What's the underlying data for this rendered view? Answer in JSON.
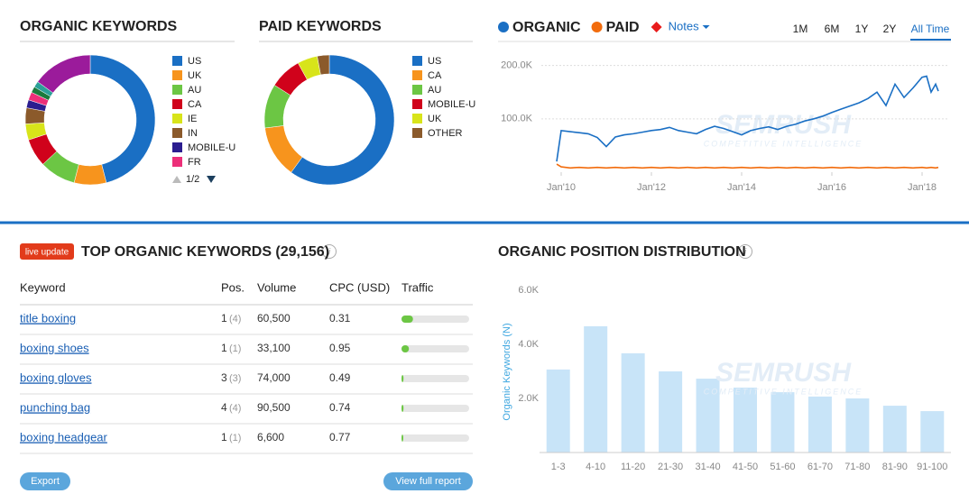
{
  "chart_data": [
    {
      "type": "pie",
      "title": "ORGANIC KEYWORDS",
      "categories": [
        "US",
        "UK",
        "AU",
        "CA",
        "IE",
        "IN",
        "MOBILE-U",
        "FR",
        null,
        null,
        null
      ],
      "values": [
        46,
        8,
        9,
        7,
        4,
        4,
        2,
        2,
        1.5,
        1.5,
        15
      ],
      "colors": [
        "#1a6fc4",
        "#f7941d",
        "#6cc644",
        "#d0021b",
        "#d8e41a",
        "#8b5a2b",
        "#2b1d8f",
        "#ec2f79",
        "#1b7a3c",
        "#2aa198",
        "#9b1b9b"
      ],
      "pagination": "1/2"
    },
    {
      "type": "pie",
      "title": "PAID KEYWORDS",
      "categories": [
        "US",
        "CA",
        "AU",
        "MOBILE-U",
        "UK",
        "OTHER"
      ],
      "values": [
        60,
        13,
        11,
        8,
        5,
        3
      ],
      "colors": [
        "#1a6fc4",
        "#f7941d",
        "#6cc644",
        "#d0021b",
        "#d8e41a",
        "#8b5a2b"
      ]
    },
    {
      "type": "line",
      "x": [
        2009.9,
        2010.0,
        2010.2,
        2010.4,
        2010.6,
        2010.8,
        2011.0,
        2011.2,
        2011.4,
        2011.6,
        2011.8,
        2012.0,
        2012.2,
        2012.4,
        2012.6,
        2012.8,
        2013.0,
        2013.2,
        2013.4,
        2013.6,
        2013.8,
        2014.0,
        2014.2,
        2014.4,
        2014.6,
        2014.8,
        2015.0,
        2015.2,
        2015.4,
        2015.6,
        2015.8,
        2016.0,
        2016.2,
        2016.4,
        2016.6,
        2016.8,
        2017.0,
        2017.2,
        2017.4,
        2017.6,
        2017.8,
        2018.0,
        2018.1,
        2018.2,
        2018.3,
        2018.36
      ],
      "series": [
        {
          "name": "ORGANIC",
          "color": "#1a6fc4",
          "values": [
            20000,
            78000,
            76000,
            74000,
            72000,
            65000,
            48000,
            66000,
            70000,
            72000,
            75000,
            78000,
            80000,
            84000,
            78000,
            75000,
            72000,
            80000,
            86000,
            82000,
            76000,
            70000,
            78000,
            82000,
            85000,
            80000,
            86000,
            90000,
            96000,
            100000,
            105000,
            112000,
            118000,
            124000,
            130000,
            138000,
            150000,
            125000,
            165000,
            140000,
            158000,
            178000,
            180000,
            150000,
            165000,
            152000
          ]
        },
        {
          "name": "PAID",
          "color": "#f26c0d",
          "values": [
            15000,
            10000,
            8000,
            9000,
            8000,
            9000,
            8000,
            9000,
            8000,
            9000,
            8000,
            9000,
            8000,
            9000,
            8000,
            9000,
            8000,
            9000,
            8000,
            9000,
            8000,
            9000,
            8000,
            9000,
            8000,
            9000,
            8000,
            9000,
            8000,
            9000,
            8000,
            9000,
            8000,
            9000,
            8000,
            9000,
            8000,
            9000,
            8000,
            9000,
            8000,
            9000,
            8000,
            9000,
            8000,
            9000
          ]
        }
      ],
      "notes_label": "Notes",
      "ranges": [
        "1M",
        "6M",
        "1Y",
        "2Y",
        "All Time"
      ],
      "selected_range": 4,
      "xlim": [
        2009.7,
        2018.6
      ],
      "xticks": [
        {
          "value": 2010,
          "label": "Jan'10"
        },
        {
          "value": 2012,
          "label": "Jan'12"
        },
        {
          "value": 2014,
          "label": "Jan'14"
        },
        {
          "value": 2016,
          "label": "Jan'16"
        },
        {
          "value": 2018,
          "label": "Jan'18"
        }
      ],
      "ylim": [
        0,
        218000
      ],
      "yticks": [
        {
          "value": 100000,
          "label": "100.0K"
        },
        {
          "value": 200000,
          "label": "200.0K"
        }
      ],
      "grid": true
    },
    {
      "type": "bar",
      "title": "ORGANIC POSITION DISTRIBUTION",
      "ylabel": "Organic Keywords (N)",
      "categories": [
        "1-3",
        "4-10",
        "11-20",
        "21-30",
        "31-40",
        "41-50",
        "51-60",
        "61-70",
        "71-80",
        "81-90",
        "91-100"
      ],
      "values": [
        3070,
        4670,
        3670,
        3000,
        2730,
        2400,
        2230,
        2070,
        2000,
        1730,
        1530
      ],
      "color": "#c8e4f8",
      "ylim": [
        0,
        6500
      ],
      "yticks": [
        {
          "value": 2000,
          "label": "2.0K"
        },
        {
          "value": 4000,
          "label": "4.0K"
        },
        {
          "value": 6000,
          "label": "6.0K"
        }
      ]
    }
  ],
  "watermark": {
    "brand": "SEMRUSH",
    "tagline": "COMPETITIVE INTELLIGENCE"
  },
  "keywords_table": {
    "badge": "live update",
    "title": "TOP ORGANIC KEYWORDS (29,156)",
    "columns": [
      "Keyword",
      "Pos.",
      "Volume",
      "CPC (USD)",
      "Traffic"
    ],
    "traffic_lim": [
      0,
      100
    ],
    "rows": [
      {
        "keyword": "title boxing",
        "pos": 1,
        "prev_pos": "(4)",
        "volume": "60,500",
        "cpc": 0.31,
        "traffic": 17
      },
      {
        "keyword": "boxing shoes",
        "pos": 1,
        "prev_pos": "(1)",
        "volume": "33,100",
        "cpc": 0.95,
        "traffic": 11
      },
      {
        "keyword": "boxing gloves",
        "pos": 3,
        "prev_pos": "(3)",
        "volume": "74,000",
        "cpc": 0.49,
        "traffic": 3
      },
      {
        "keyword": "punching bag",
        "pos": 4,
        "prev_pos": "(4)",
        "volume": "90,500",
        "cpc": 0.74,
        "traffic": 3
      },
      {
        "keyword": "boxing headgear",
        "pos": 1,
        "prev_pos": "(1)",
        "volume": "6,600",
        "cpc": 0.77,
        "traffic": 2
      }
    ],
    "buttons": [
      "Export",
      "View full report"
    ]
  }
}
